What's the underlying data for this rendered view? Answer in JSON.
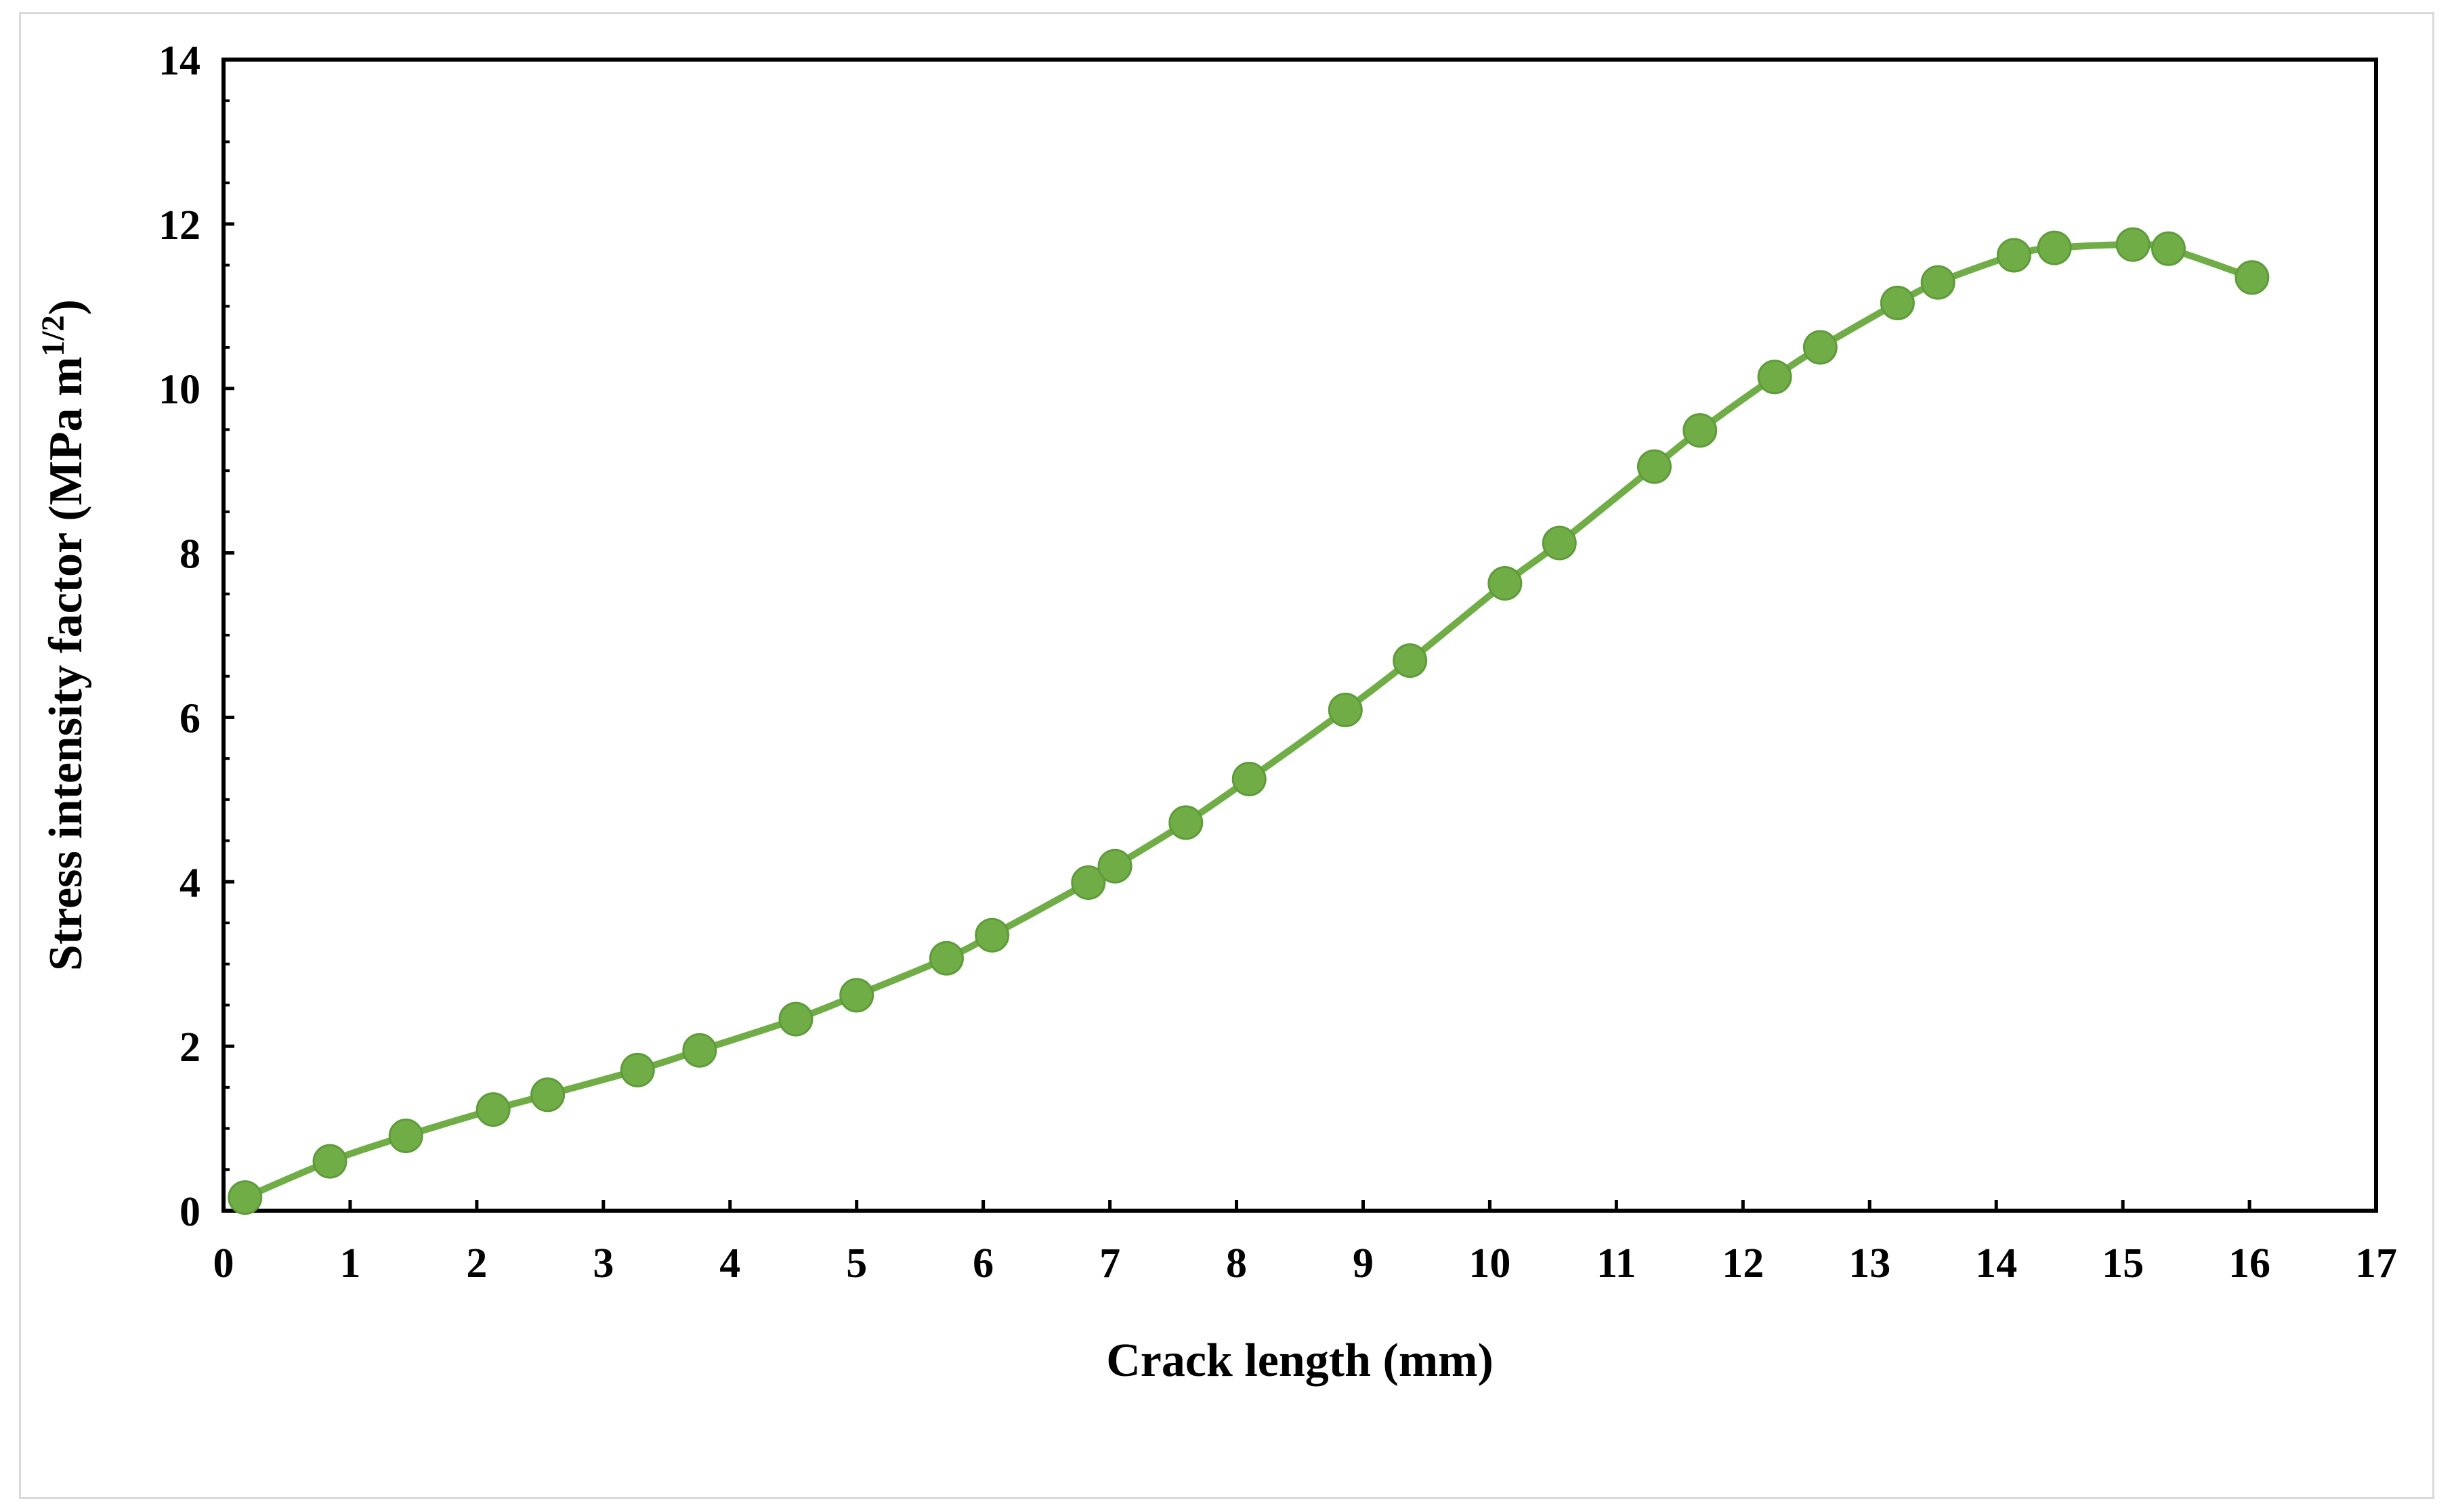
{
  "chart_data": {
    "type": "line",
    "xlabel": "Crack length (mm)",
    "ylabel": {
      "main": "Stress intensity factor (MPa m",
      "superscript": "1/2",
      "close": ")"
    },
    "xlim": [
      0,
      17
    ],
    "ylim": [
      0,
      14
    ],
    "x_ticks": [
      "0",
      "1",
      "2",
      "3",
      "4",
      "5",
      "6",
      "7",
      "8",
      "9",
      "10",
      "11",
      "12",
      "13",
      "14",
      "15",
      "16",
      "17"
    ],
    "y_ticks": [
      "0",
      "2",
      "4",
      "6",
      "8",
      "10",
      "12",
      "14"
    ],
    "grid": false,
    "legend": "none",
    "colors": {
      "line": "#70ad47",
      "marker": "#70ad47",
      "axis": "#000000",
      "frame": "#d9d9d9"
    },
    "series": [
      {
        "markers": true,
        "smooth": true,
        "points": [
          {
            "x": 0.17,
            "y": 0.16
          },
          {
            "x": 0.84,
            "y": 0.6
          },
          {
            "x": 1.44,
            "y": 0.91
          },
          {
            "x": 2.13,
            "y": 1.23
          },
          {
            "x": 2.56,
            "y": 1.41
          },
          {
            "x": 3.27,
            "y": 1.71
          },
          {
            "x": 3.76,
            "y": 1.95
          },
          {
            "x": 4.52,
            "y": 2.33
          },
          {
            "x": 5.0,
            "y": 2.62
          },
          {
            "x": 5.71,
            "y": 3.07
          },
          {
            "x": 6.07,
            "y": 3.35
          },
          {
            "x": 6.83,
            "y": 3.99
          },
          {
            "x": 7.04,
            "y": 4.19
          },
          {
            "x": 7.6,
            "y": 4.72
          },
          {
            "x": 8.1,
            "y": 5.25
          },
          {
            "x": 8.86,
            "y": 6.09
          },
          {
            "x": 9.37,
            "y": 6.69
          },
          {
            "x": 10.12,
            "y": 7.63
          },
          {
            "x": 10.55,
            "y": 8.12
          },
          {
            "x": 11.3,
            "y": 9.05
          },
          {
            "x": 11.66,
            "y": 9.49
          },
          {
            "x": 12.25,
            "y": 10.14
          },
          {
            "x": 12.61,
            "y": 10.5
          },
          {
            "x": 13.22,
            "y": 11.04
          },
          {
            "x": 13.54,
            "y": 11.29
          },
          {
            "x": 14.14,
            "y": 11.62
          },
          {
            "x": 14.46,
            "y": 11.71
          },
          {
            "x": 15.08,
            "y": 11.75
          },
          {
            "x": 15.36,
            "y": 11.7
          },
          {
            "x": 16.02,
            "y": 11.35
          }
        ]
      }
    ]
  }
}
